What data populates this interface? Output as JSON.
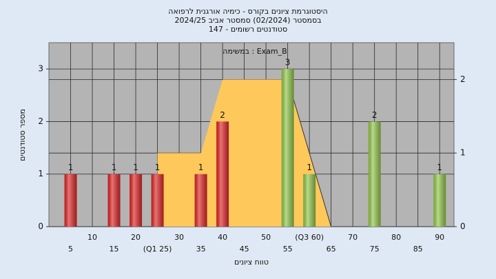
{
  "chart_data": {
    "type": "histogram",
    "title": [
      "היסטוגרמת ציונים בקורס - כימיה אורגנית לרפואה",
      "בסמסטר  (02/2024)  סמסטר אביב 2024/25",
      "סטודנטים רשומים - 147"
    ],
    "subtitle": "במשימה : Exam_B",
    "y_label": "מספר סטודנטים",
    "x_label": "טווח ציונים",
    "xlim": [
      0,
      93.3
    ],
    "xticks": [
      5,
      10,
      15,
      20,
      {
        "value": 25,
        "label": "(Q1 25)"
      },
      30,
      35,
      40,
      45,
      50,
      55,
      {
        "value": 60,
        "label": "(Q3 60)"
      },
      65,
      70,
      75,
      80,
      85,
      90
    ],
    "ylim": [
      0,
      3.5
    ],
    "yticks": [
      0,
      1,
      2,
      3
    ],
    "y2lim": [
      0,
      2.5
    ],
    "y2ticks": [
      0,
      1,
      2
    ],
    "grid": true,
    "series": [
      {
        "type": "bar",
        "x": [
          5,
          15,
          20,
          25,
          35,
          40,
          55,
          60,
          75,
          90
        ],
        "values": [
          1,
          1,
          1,
          1,
          1,
          2,
          3,
          1,
          2,
          1
        ],
        "colors": [
          "#e02828",
          "#e02828",
          "#e02828",
          "#e02828",
          "#e02828",
          "#e02828",
          "#94c84c",
          "#94c84c",
          "#94c84c",
          "#94c84c"
        ]
      },
      {
        "type": "area",
        "axis": "y2",
        "x": [
          25,
          25,
          35,
          40,
          55,
          65
        ],
        "values": [
          0,
          1,
          1,
          2,
          2,
          0
        ],
        "color": "#ffc85a"
      }
    ]
  }
}
